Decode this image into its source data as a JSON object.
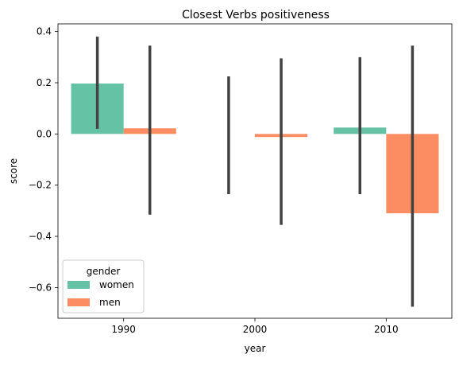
{
  "chart_data": {
    "type": "bar",
    "title": "Closest Verbs positiveness",
    "xlabel": "year",
    "ylabel": "score",
    "categories": [
      "1990",
      "2000",
      "2010"
    ],
    "ylim": [
      -0.72,
      0.43
    ],
    "yticks": [
      0.4,
      0.2,
      0.0,
      -0.2,
      -0.4,
      -0.6
    ],
    "ytick_labels": [
      "0.4",
      "0.2",
      "0.0",
      "−0.2",
      "−0.4",
      "−0.6"
    ],
    "legend": {
      "title": "gender",
      "placement": "lower-left"
    },
    "series": [
      {
        "name": "women",
        "color": "#66c2a5",
        "values": [
          0.197,
          0.0,
          0.025
        ],
        "ci_low": [
          0.02,
          -0.235,
          -0.235
        ],
        "ci_high": [
          0.38,
          0.225,
          0.3
        ]
      },
      {
        "name": "men",
        "color": "#fc8d62",
        "values": [
          0.022,
          -0.012,
          -0.31
        ],
        "ci_low": [
          -0.315,
          -0.355,
          -0.675
        ],
        "ci_high": [
          0.345,
          0.295,
          0.345
        ]
      }
    ],
    "errorbar_color": "#424242",
    "grid": false
  }
}
